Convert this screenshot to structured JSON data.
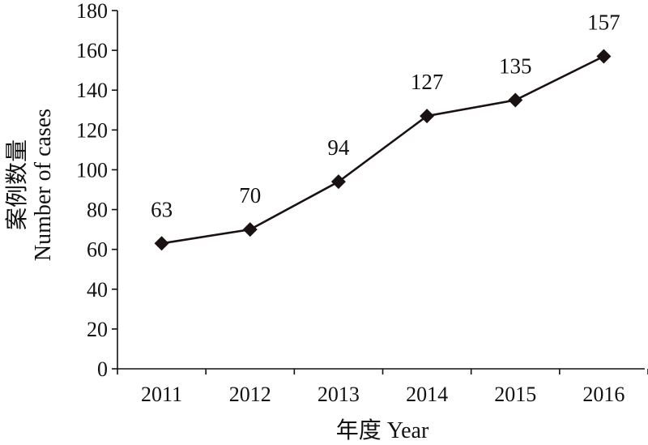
{
  "chart_data": {
    "type": "line",
    "categories": [
      "2011",
      "2012",
      "2013",
      "2014",
      "2015",
      "2016"
    ],
    "values": [
      63,
      70,
      94,
      127,
      135,
      157
    ],
    "data_labels": [
      "63",
      "70",
      "94",
      "127",
      "135",
      "157"
    ],
    "xlabel": "年度 Year",
    "ylabel_cn": "案例数量",
    "ylabel_en": "Number of cases",
    "ylim": [
      0,
      180
    ],
    "yticks": [
      0,
      20,
      40,
      60,
      80,
      100,
      120,
      140,
      160,
      180
    ],
    "ytick_labels": [
      "0",
      "20",
      "40",
      "60",
      "80",
      "100",
      "120",
      "140",
      "160",
      "180"
    ],
    "grid": false,
    "marker": "diamond",
    "line_color": "#1a1212"
  }
}
